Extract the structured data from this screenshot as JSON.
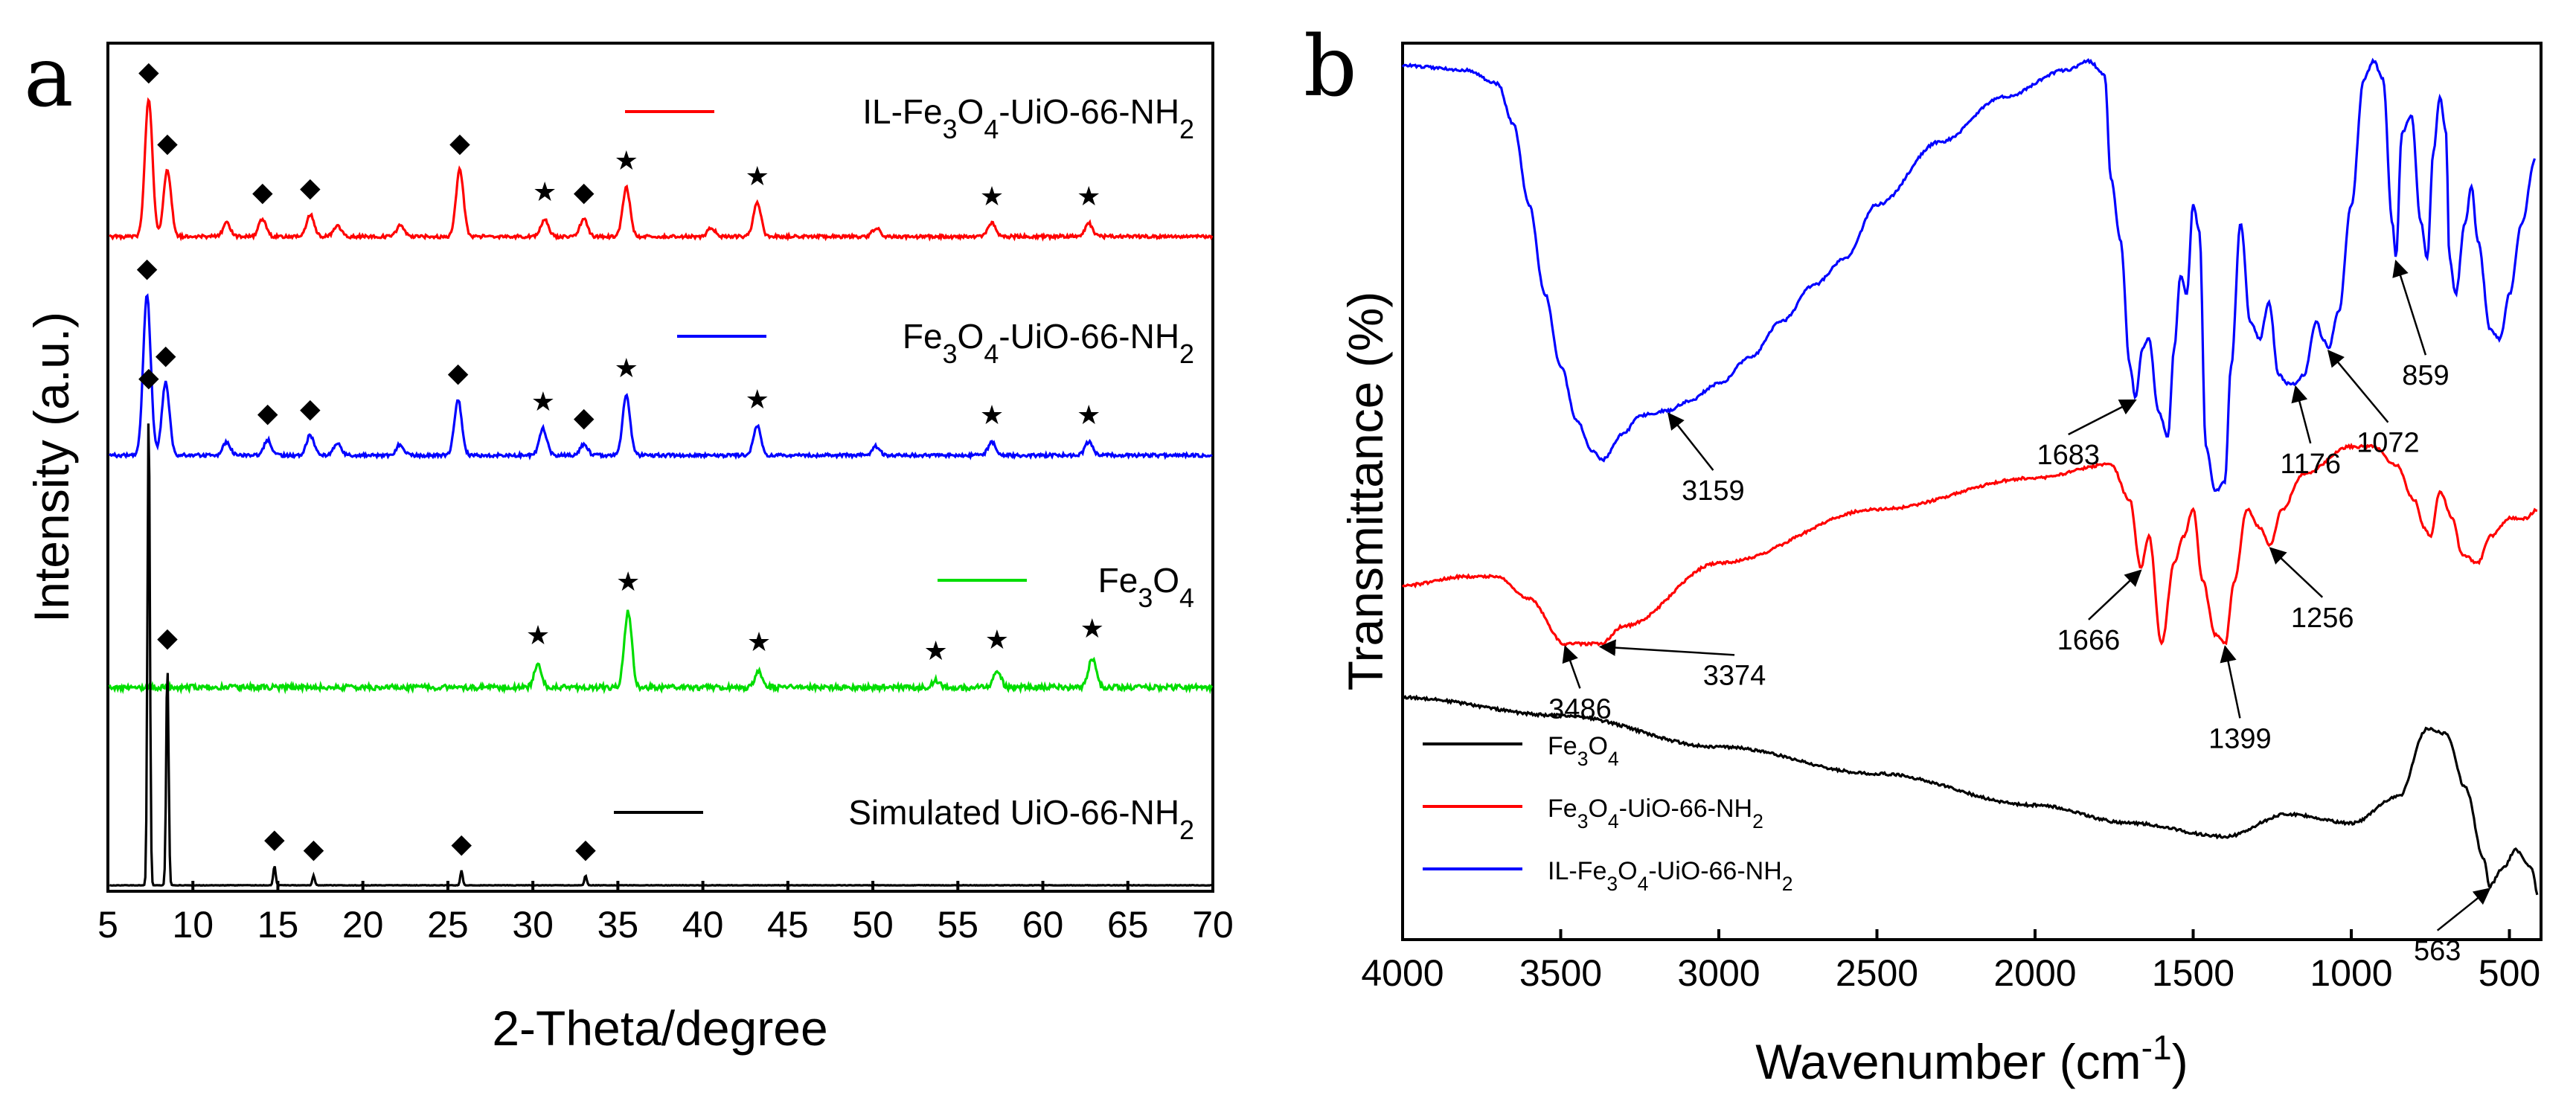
{
  "chart_data": [
    {
      "panel": "a",
      "type": "line",
      "title": "",
      "xlabel": "2-Theta/degree",
      "ylabel": "Intensity (a.u.)",
      "xlim": [
        5,
        70
      ],
      "xticks": [
        5,
        10,
        15,
        20,
        25,
        30,
        35,
        40,
        45,
        50,
        55,
        60,
        65,
        70
      ],
      "marker_legend": {
        "diamond": "◆",
        "star": "★"
      },
      "series": [
        {
          "name": "IL-Fe3O4-UiO-66-NH2",
          "label_parts": [
            [
              "IL-Fe",
              ""
            ],
            [
              "3",
              "sub"
            ],
            [
              "O",
              ""
            ],
            [
              "4",
              "sub"
            ],
            [
              "-UiO-66-NH",
              ""
            ],
            [
              "2",
              "sub"
            ]
          ],
          "color": "#ff0000",
          "peaks": [
            {
              "x": 7.4,
              "h": 0.62,
              "marker": "diamond"
            },
            {
              "x": 8.5,
              "h": 0.3,
              "marker": "diamond"
            },
            {
              "x": 12.0,
              "h": 0.06,
              "marker": ""
            },
            {
              "x": 14.1,
              "h": 0.08,
              "marker": "diamond"
            },
            {
              "x": 16.9,
              "h": 0.1,
              "marker": "diamond"
            },
            {
              "x": 18.5,
              "h": 0.05,
              "marker": ""
            },
            {
              "x": 22.2,
              "h": 0.05,
              "marker": ""
            },
            {
              "x": 25.7,
              "h": 0.3,
              "marker": "diamond"
            },
            {
              "x": 30.7,
              "h": 0.08,
              "marker": "star"
            },
            {
              "x": 33.0,
              "h": 0.08,
              "marker": "diamond"
            },
            {
              "x": 35.5,
              "h": 0.22,
              "marker": "star"
            },
            {
              "x": 40.5,
              "h": 0.04,
              "marker": ""
            },
            {
              "x": 43.2,
              "h": 0.15,
              "marker": "star"
            },
            {
              "x": 50.2,
              "h": 0.04,
              "marker": ""
            },
            {
              "x": 57.0,
              "h": 0.06,
              "marker": "star"
            },
            {
              "x": 62.7,
              "h": 0.06,
              "marker": "star"
            }
          ]
        },
        {
          "name": "Fe3O4-UiO-66-NH2",
          "label_parts": [
            [
              "Fe",
              ""
            ],
            [
              "3",
              "sub"
            ],
            [
              "O",
              ""
            ],
            [
              "4",
              "sub"
            ],
            [
              "-UiO-66-NH",
              ""
            ],
            [
              "2",
              "sub"
            ]
          ],
          "color": "#0000ff",
          "peaks": [
            {
              "x": 7.3,
              "h": 0.72,
              "marker": "diamond"
            },
            {
              "x": 8.4,
              "h": 0.33,
              "marker": "diamond"
            },
            {
              "x": 12.0,
              "h": 0.06,
              "marker": ""
            },
            {
              "x": 14.4,
              "h": 0.07,
              "marker": "diamond"
            },
            {
              "x": 16.9,
              "h": 0.09,
              "marker": "diamond"
            },
            {
              "x": 18.5,
              "h": 0.05,
              "marker": ""
            },
            {
              "x": 22.2,
              "h": 0.05,
              "marker": ""
            },
            {
              "x": 25.6,
              "h": 0.25,
              "marker": "diamond"
            },
            {
              "x": 30.6,
              "h": 0.12,
              "marker": "star"
            },
            {
              "x": 33.0,
              "h": 0.05,
              "marker": "diamond"
            },
            {
              "x": 35.5,
              "h": 0.27,
              "marker": "star"
            },
            {
              "x": 43.2,
              "h": 0.13,
              "marker": "star"
            },
            {
              "x": 50.2,
              "h": 0.04,
              "marker": ""
            },
            {
              "x": 57.0,
              "h": 0.06,
              "marker": "star"
            },
            {
              "x": 62.7,
              "h": 0.06,
              "marker": "star"
            }
          ]
        },
        {
          "name": "Fe3O4",
          "label_parts": [
            [
              "Fe",
              ""
            ],
            [
              "3",
              "sub"
            ],
            [
              "O",
              ""
            ],
            [
              "4",
              "sub"
            ]
          ],
          "color": "#00dd00",
          "peaks": [
            {
              "x": 30.3,
              "h": 0.1,
              "marker": "star"
            },
            {
              "x": 35.6,
              "h": 0.34,
              "marker": "star"
            },
            {
              "x": 43.3,
              "h": 0.07,
              "marker": "star"
            },
            {
              "x": 53.7,
              "h": 0.03,
              "marker": "star"
            },
            {
              "x": 57.3,
              "h": 0.08,
              "marker": "star"
            },
            {
              "x": 62.9,
              "h": 0.13,
              "marker": "star"
            }
          ]
        },
        {
          "name": "Simulated UiO-66-NH2",
          "label_parts": [
            [
              "Simulated UiO-66-NH",
              ""
            ],
            [
              "2",
              "sub"
            ]
          ],
          "color": "#000000",
          "peaks": [
            {
              "x": 7.4,
              "h": 0.98,
              "marker": "diamond"
            },
            {
              "x": 8.5,
              "h": 0.45,
              "marker": "diamond"
            },
            {
              "x": 14.8,
              "h": 0.04,
              "marker": "diamond"
            },
            {
              "x": 17.1,
              "h": 0.02,
              "marker": "diamond"
            },
            {
              "x": 25.8,
              "h": 0.03,
              "marker": "diamond"
            },
            {
              "x": 33.1,
              "h": 0.02,
              "marker": "diamond"
            }
          ]
        }
      ]
    },
    {
      "panel": "b",
      "type": "line",
      "title": "",
      "xlabel": "Wavenumber (cm-1)",
      "xlabel_parts": [
        [
          "Wavenumber (cm",
          ""
        ],
        [
          "-1",
          "sup"
        ],
        [
          ")",
          ""
        ]
      ],
      "ylabel": "Transmittance (%)",
      "xlim": [
        4000,
        400
      ],
      "xticks": [
        4000,
        3500,
        3000,
        2500,
        2000,
        1500,
        1000,
        500
      ],
      "series": [
        {
          "name": "Fe3O4",
          "label_parts": [
            [
              "Fe",
              ""
            ],
            [
              "3",
              "sub"
            ],
            [
              "O",
              ""
            ],
            [
              "4",
              "sub"
            ]
          ],
          "color": "#000000",
          "points": [
            [
              4000,
              0.27
            ],
            [
              3500,
              0.25
            ],
            [
              3000,
              0.215
            ],
            [
              2500,
              0.185
            ],
            [
              2000,
              0.15
            ],
            [
              1700,
              0.13
            ],
            [
              1400,
              0.115
            ],
            [
              1200,
              0.14
            ],
            [
              1000,
              0.13
            ],
            [
              850,
              0.16
            ],
            [
              760,
              0.235
            ],
            [
              700,
              0.23
            ],
            [
              640,
              0.17
            ],
            [
              580,
              0.09
            ],
            [
              563,
              0.06
            ],
            [
              520,
              0.08
            ],
            [
              480,
              0.1
            ],
            [
              430,
              0.08
            ],
            [
              410,
              0.05
            ]
          ]
        },
        {
          "name": "Fe3O4-UiO-66-NH2",
          "label_parts": [
            [
              "Fe",
              ""
            ],
            [
              "3",
              "sub"
            ],
            [
              "O",
              ""
            ],
            [
              "4",
              "sub"
            ],
            [
              "-UiO-66-NH",
              ""
            ],
            [
              "2",
              "sub"
            ]
          ],
          "color": "#ff0000",
          "points": [
            [
              4000,
              0.395
            ],
            [
              3800,
              0.405
            ],
            [
              3700,
              0.405
            ],
            [
              3600,
              0.38
            ],
            [
              3486,
              0.33
            ],
            [
              3374,
              0.33
            ],
            [
              3300,
              0.35
            ],
            [
              3000,
              0.42
            ],
            [
              2500,
              0.48
            ],
            [
              2000,
              0.515
            ],
            [
              1760,
              0.53
            ],
            [
              1700,
              0.49
            ],
            [
              1666,
              0.415
            ],
            [
              1640,
              0.45
            ],
            [
              1600,
              0.33
            ],
            [
              1560,
              0.42
            ],
            [
              1530,
              0.45
            ],
            [
              1500,
              0.48
            ],
            [
              1470,
              0.4
            ],
            [
              1430,
              0.34
            ],
            [
              1399,
              0.33
            ],
            [
              1370,
              0.4
            ],
            [
              1330,
              0.48
            ],
            [
              1290,
              0.46
            ],
            [
              1256,
              0.44
            ],
            [
              1220,
              0.48
            ],
            [
              1150,
              0.52
            ],
            [
              1000,
              0.55
            ],
            [
              930,
              0.55
            ],
            [
              860,
              0.53
            ],
            [
              800,
              0.49
            ],
            [
              770,
              0.46
            ],
            [
              750,
              0.45
            ],
            [
              720,
              0.5
            ],
            [
              680,
              0.47
            ],
            [
              650,
              0.43
            ],
            [
              600,
              0.42
            ],
            [
              560,
              0.45
            ],
            [
              500,
              0.47
            ],
            [
              450,
              0.47
            ],
            [
              410,
              0.48
            ]
          ]
        },
        {
          "name": "IL-Fe3O4-UiO-66-NH2",
          "label_parts": [
            [
              "IL-Fe",
              ""
            ],
            [
              "3",
              "sub"
            ],
            [
              "O",
              ""
            ],
            [
              "4",
              "sub"
            ],
            [
              "-UiO-66-NH",
              ""
            ],
            [
              "2",
              "sub"
            ]
          ],
          "color": "#0000ff",
          "points": [
            [
              4000,
              0.975
            ],
            [
              3800,
              0.97
            ],
            [
              3700,
              0.955
            ],
            [
              3650,
              0.91
            ],
            [
              3600,
              0.82
            ],
            [
              3550,
              0.72
            ],
            [
              3500,
              0.64
            ],
            [
              3450,
              0.58
            ],
            [
              3400,
              0.545
            ],
            [
              3370,
              0.535
            ],
            [
              3300,
              0.565
            ],
            [
              3250,
              0.585
            ],
            [
              3159,
              0.59
            ],
            [
              3100,
              0.6
            ],
            [
              3000,
              0.62
            ],
            [
              2900,
              0.65
            ],
            [
              2800,
              0.69
            ],
            [
              2700,
              0.73
            ],
            [
              2600,
              0.76
            ],
            [
              2500,
              0.82
            ],
            [
              2300,
              0.89
            ],
            [
              2100,
              0.94
            ],
            [
              1900,
              0.97
            ],
            [
              1830,
              0.98
            ],
            [
              1780,
              0.965
            ],
            [
              1760,
              0.85
            ],
            [
              1730,
              0.78
            ],
            [
              1700,
              0.64
            ],
            [
              1683,
              0.605
            ],
            [
              1660,
              0.66
            ],
            [
              1640,
              0.67
            ],
            [
              1610,
              0.59
            ],
            [
              1580,
              0.56
            ],
            [
              1560,
              0.66
            ],
            [
              1540,
              0.74
            ],
            [
              1520,
              0.72
            ],
            [
              1500,
              0.82
            ],
            [
              1480,
              0.79
            ],
            [
              1460,
              0.55
            ],
            [
              1430,
              0.5
            ],
            [
              1400,
              0.51
            ],
            [
              1380,
              0.64
            ],
            [
              1350,
              0.8
            ],
            [
              1320,
              0.69
            ],
            [
              1290,
              0.67
            ],
            [
              1260,
              0.71
            ],
            [
              1230,
              0.63
            ],
            [
              1200,
              0.62
            ],
            [
              1176,
              0.62
            ],
            [
              1150,
              0.63
            ],
            [
              1110,
              0.69
            ],
            [
              1090,
              0.67
            ],
            [
              1072,
              0.66
            ],
            [
              1040,
              0.7
            ],
            [
              1000,
              0.82
            ],
            [
              960,
              0.96
            ],
            [
              930,
              0.98
            ],
            [
              900,
              0.96
            ],
            [
              870,
              0.8
            ],
            [
              859,
              0.76
            ],
            [
              840,
              0.9
            ],
            [
              810,
              0.92
            ],
            [
              780,
              0.8
            ],
            [
              760,
              0.76
            ],
            [
              740,
              0.88
            ],
            [
              720,
              0.94
            ],
            [
              700,
              0.9
            ],
            [
              690,
              0.76
            ],
            [
              670,
              0.72
            ],
            [
              640,
              0.8
            ],
            [
              620,
              0.84
            ],
            [
              600,
              0.78
            ],
            [
              560,
              0.68
            ],
            [
              530,
              0.67
            ],
            [
              500,
              0.72
            ],
            [
              460,
              0.8
            ],
            [
              420,
              0.87
            ]
          ]
        }
      ],
      "annotations": [
        {
          "label": "3159",
          "x": 3159,
          "series": 2
        },
        {
          "label": "1683",
          "x": 1683,
          "series": 2
        },
        {
          "label": "1176",
          "x": 1176,
          "series": 2
        },
        {
          "label": "1072",
          "x": 1072,
          "series": 2
        },
        {
          "label": "859",
          "x": 859,
          "series": 2
        },
        {
          "label": "3374",
          "x": 3374,
          "series": 1
        },
        {
          "label": "3486",
          "x": 3486,
          "series": 1
        },
        {
          "label": "1666",
          "x": 1666,
          "series": 1
        },
        {
          "label": "1399",
          "x": 1399,
          "series": 1
        },
        {
          "label": "1256",
          "x": 1256,
          "series": 1
        },
        {
          "label": "563",
          "x": 563,
          "series": 0
        }
      ]
    }
  ]
}
